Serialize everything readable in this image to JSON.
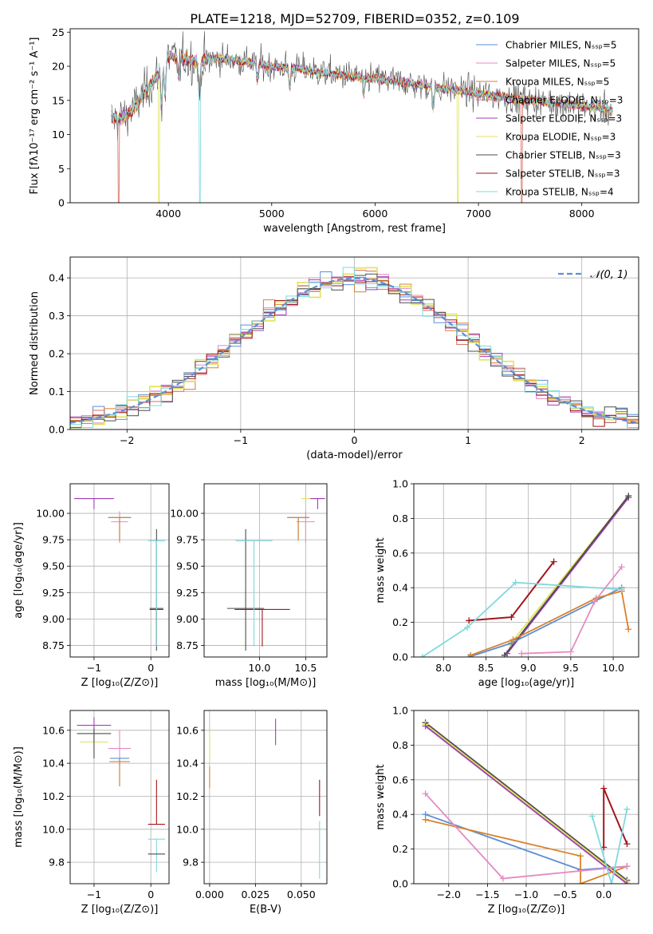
{
  "title": "PLATE=1218, MJD=52709, FIBERID=0352, z=0.109",
  "colors": {
    "s0": "#5b8fd6",
    "s1": "#e48bc3",
    "s2": "#d9822b",
    "s3": "#d86b5c",
    "s4": "#9f3fb5",
    "s5": "#e1e35a",
    "s6": "#4d4d4d",
    "s7": "#a3161b",
    "s8": "#7fd9de",
    "grid": "#b0b0b0",
    "gauss": "#5b8fd6"
  },
  "chart_data": [
    {
      "id": "spectrum",
      "type": "line",
      "xlabel": "wavelength [Angstrom, rest frame]",
      "ylabel": "Flux [fλ10⁻¹⁷ erg cm⁻² s⁻¹ A⁻¹]",
      "xlim": [
        3050,
        8550
      ],
      "ylim": [
        0,
        25.5
      ],
      "xticks": [
        4000,
        5000,
        6000,
        7000,
        8000
      ],
      "yticks": [
        0,
        5,
        10,
        15,
        20,
        25
      ],
      "legend_position": "upper right",
      "legend": [
        "Chabrier MILES, Nₛₛₚ=5",
        "Salpeter MILES, Nₛₛₚ=5",
        "Kroupa MILES, Nₛₛₚ=5",
        "Chabrier ELODIE, Nₛₛₚ=3",
        "Salpeter ELODIE, Nₛₛₚ=3",
        "Kroupa ELODIE, Nₛₛₚ=3",
        "Chabrier STELIB, Nₛₛₚ=3",
        "Salpeter STELIB, Nₛₛₚ=3",
        "Kroupa STELIB, Nₛₛₚ=4"
      ],
      "model_curve": {
        "x": [
          3450,
          3500,
          3600,
          3700,
          3800,
          3900,
          3950,
          4000,
          4100,
          4200,
          4300,
          4400,
          4500,
          4700,
          5000,
          5200,
          5500,
          5800,
          6000,
          6200,
          6500,
          6800,
          7000,
          7200,
          7500,
          7800,
          8000,
          8200,
          8300
        ],
        "y": [
          12.3,
          12.2,
          12.8,
          14.5,
          16.8,
          18.8,
          20.5,
          21.5,
          21.2,
          21.0,
          20.5,
          21.0,
          21.2,
          20.8,
          20.0,
          19.8,
          19.0,
          18.5,
          18.2,
          17.8,
          17.2,
          16.5,
          16.0,
          15.6,
          15.0,
          14.6,
          14.2,
          13.8,
          13.5
        ]
      },
      "dropouts": [
        {
          "x": 3520,
          "color": "s3"
        },
        {
          "x": 3910,
          "color": "s5"
        },
        {
          "x": 4305,
          "color": "s8"
        },
        {
          "x": 6800,
          "color": "s5"
        },
        {
          "x": 7420,
          "color": "s3"
        }
      ]
    },
    {
      "id": "residuals",
      "type": "histogram",
      "xlabel": "(data-model)/error",
      "ylabel": "Normed distribution",
      "xlim": [
        -2.5,
        2.5
      ],
      "ylim": [
        0,
        0.455
      ],
      "xticks": [
        -2,
        -1,
        0,
        1,
        2
      ],
      "yticks": [
        0.0,
        0.1,
        0.2,
        0.3,
        0.4
      ],
      "legend": [
        "𝒩(0, 1)"
      ],
      "legend_position": "upper right",
      "bin_width": 0.1
    },
    {
      "id": "age-vs-Z",
      "type": "errorbar",
      "xlabel": "Z [log₁₀(Z/Z⊙)]",
      "ylabel": "age  [log₁₀(age/yr)]",
      "xlim": [
        -1.42,
        0.32
      ],
      "ylim": [
        8.64,
        10.28
      ],
      "xticks": [
        -1,
        0
      ],
      "yticks": [
        8.75,
        9.0,
        9.25,
        9.5,
        9.75,
        10.0
      ],
      "points": [
        {
          "s": "s0",
          "x": -0.55,
          "y": 9.96,
          "xe": 0.2,
          "yl": 0.23,
          "yh": 0.0
        },
        {
          "s": "s1",
          "x": -0.55,
          "y": 9.92,
          "xe": 0.15,
          "yl": 0.2,
          "yh": 0.1
        },
        {
          "s": "s2",
          "x": -0.55,
          "y": 9.96,
          "xe": 0.2,
          "yl": 0.22,
          "yh": 0.0
        },
        {
          "s": "s5",
          "x": -1.0,
          "y": 10.14,
          "xe": 0.3,
          "yl": 0.0,
          "yh": 0.0
        },
        {
          "s": "s4",
          "x": -1.0,
          "y": 10.14,
          "xe": 0.35,
          "yl": 0.1,
          "yh": 0.0
        },
        {
          "s": "s6",
          "x": 0.1,
          "y": 9.1,
          "xe": 0.12,
          "yl": 0.4,
          "yh": 0.75
        },
        {
          "s": "s7",
          "x": 0.1,
          "y": 9.09,
          "xe": 0.12,
          "yl": 0.35,
          "yh": 0.0
        },
        {
          "s": "s8",
          "x": 0.1,
          "y": 9.74,
          "xe": 0.15,
          "yl": 1.0,
          "yh": 0.0
        }
      ]
    },
    {
      "id": "age-vs-mass",
      "type": "errorbar",
      "xlabel": "mass [log₁₀(M/M⊙)]",
      "ylabel": "",
      "xlim": [
        9.4,
        10.73
      ],
      "ylim": [
        8.64,
        10.28
      ],
      "xticks": [
        10.0,
        10.5
      ],
      "yticks": [
        8.75,
        9.0,
        9.25,
        9.5,
        9.75,
        10.0
      ],
      "points": [
        {
          "s": "s0",
          "x": 10.42,
          "y": 9.96,
          "xe": 0.12,
          "yl": 0.2,
          "yh": 0.0
        },
        {
          "s": "s1",
          "x": 10.5,
          "y": 9.92,
          "xe": 0.1,
          "yl": 0.2,
          "yh": 0.1
        },
        {
          "s": "s2",
          "x": 10.42,
          "y": 9.96,
          "xe": 0.12,
          "yl": 0.22,
          "yh": 0.0
        },
        {
          "s": "s5",
          "x": 10.57,
          "y": 10.14,
          "xe": 0.12,
          "yl": 0.0,
          "yh": 0.0
        },
        {
          "s": "s4",
          "x": 10.63,
          "y": 10.14,
          "xe": 0.08,
          "yl": 0.1,
          "yh": 0.0
        },
        {
          "s": "s6",
          "x": 9.85,
          "y": 9.1,
          "xe": 0.2,
          "yl": 0.4,
          "yh": 0.75
        },
        {
          "s": "s7",
          "x": 10.03,
          "y": 9.09,
          "xe": 0.3,
          "yl": 0.35,
          "yh": 0.0
        },
        {
          "s": "s8",
          "x": 9.94,
          "y": 9.74,
          "xe": 0.2,
          "yl": 1.0,
          "yh": 0.0
        }
      ]
    },
    {
      "id": "weight-vs-age",
      "type": "line",
      "xlabel": "age  [log₁₀(age/yr)]",
      "ylabel": "mass weight",
      "xlim": [
        7.65,
        10.3
      ],
      "ylim": [
        0,
        1.0
      ],
      "xticks": [
        8.0,
        8.5,
        9.0,
        9.5,
        10.0
      ],
      "yticks": [
        0.0,
        0.2,
        0.4,
        0.6,
        0.8,
        1.0
      ],
      "series": [
        {
          "s": "s5",
          "x": [
            8.78,
            10.18
          ],
          "y": [
            0.07,
            0.93
          ]
        },
        {
          "s": "s4",
          "x": [
            8.75,
            10.18
          ],
          "y": [
            0.02,
            0.92
          ]
        },
        {
          "s": "s6",
          "x": [
            8.72,
            10.18
          ],
          "y": [
            0.01,
            0.93
          ]
        },
        {
          "s": "s0",
          "x": [
            8.3,
            8.8,
            10.1
          ],
          "y": [
            0.0,
            0.08,
            0.4
          ]
        },
        {
          "s": "s2",
          "x": [
            8.32,
            8.82,
            9.8,
            10.1,
            10.18
          ],
          "y": [
            0.01,
            0.1,
            0.34,
            0.38,
            0.16
          ]
        },
        {
          "s": "s7",
          "x": [
            8.3,
            8.8,
            9.3
          ],
          "y": [
            0.21,
            0.23,
            0.55
          ]
        },
        {
          "s": "s8",
          "x": [
            7.75,
            8.28,
            8.85,
            10.1
          ],
          "y": [
            0.0,
            0.17,
            0.43,
            0.39
          ]
        },
        {
          "s": "s1",
          "x": [
            8.92,
            9.5,
            9.78,
            10.1
          ],
          "y": [
            0.02,
            0.03,
            0.32,
            0.52
          ]
        }
      ]
    },
    {
      "id": "mass-vs-Z",
      "type": "errorbar",
      "xlabel": "Z [log₁₀(Z/Z⊙)]",
      "ylabel": "mass [log₁₀(M/M⊙)]",
      "xlim": [
        -1.42,
        0.32
      ],
      "ylim": [
        9.67,
        10.72
      ],
      "xticks": [
        -1,
        0
      ],
      "yticks": [
        9.8,
        10.0,
        10.2,
        10.4,
        10.6
      ],
      "points": [
        {
          "s": "s4",
          "x": -1.0,
          "y": 10.63,
          "xe": 0.3,
          "yl": 0.1,
          "yh": 0.05
        },
        {
          "s": "s5",
          "x": -1.0,
          "y": 10.53,
          "xe": 0.25,
          "yl": 0.1,
          "yh": 0.07
        },
        {
          "s": "s6",
          "x": -1.0,
          "y": 10.58,
          "xe": 0.3,
          "yl": 0.15,
          "yh": 0.03
        },
        {
          "s": "s1",
          "x": -0.55,
          "y": 10.49,
          "xe": 0.2,
          "yl": 0.1,
          "yh": 0.11
        },
        {
          "s": "s0",
          "x": -0.55,
          "y": 10.43,
          "xe": 0.17,
          "yl": 0.17,
          "yh": 0.0
        },
        {
          "s": "s2",
          "x": -0.55,
          "y": 10.41,
          "xe": 0.18,
          "yl": 0.15,
          "yh": 0.0
        },
        {
          "s": "s7",
          "x": 0.1,
          "y": 10.03,
          "xe": 0.15,
          "yl": 0.0,
          "yh": 0.27
        },
        {
          "s": "s8",
          "x": 0.1,
          "y": 9.94,
          "xe": 0.15,
          "yl": 0.2,
          "yh": 0.0
        },
        {
          "s": "s6",
          "x": 0.1,
          "y": 9.85,
          "xe": 0.15,
          "yl": 0.0,
          "yh": 0.0
        }
      ]
    },
    {
      "id": "mass-vs-EBV",
      "type": "errorbar",
      "xlabel": "E(B-V)",
      "ylabel": "",
      "xlim": [
        -0.003,
        0.064
      ],
      "ylim": [
        9.67,
        10.72
      ],
      "xticks": [
        0.0,
        0.025,
        0.05
      ],
      "yticks": [
        9.8,
        10.0,
        10.2,
        10.4,
        10.6
      ],
      "points": [
        {
          "s": "s5",
          "x": 0.0,
          "y": 10.5,
          "xe": 0.0,
          "yl": 0.1,
          "yh": 0.1
        },
        {
          "s": "s2",
          "x": 0.0,
          "y": 10.38,
          "xe": 0.0,
          "yl": 0.13,
          "yh": 0.0
        },
        {
          "s": "s4",
          "x": 0.036,
          "y": 10.6,
          "xe": 0.0,
          "yl": 0.09,
          "yh": 0.07
        },
        {
          "s": "s7",
          "x": 0.06,
          "y": 10.08,
          "xe": 0.0,
          "yl": 0.0,
          "yh": 0.22
        },
        {
          "s": "s8",
          "x": 0.06,
          "y": 9.9,
          "xe": 0.0,
          "yl": 0.2,
          "yh": 0.15
        }
      ]
    },
    {
      "id": "weight-vs-Z",
      "type": "line",
      "xlabel": "Z [log₁₀(Z/Z⊙)]",
      "ylabel": "mass weight",
      "xlim": [
        -2.45,
        0.45
      ],
      "ylim": [
        0,
        1.0
      ],
      "xticks": [
        -2.0,
        -1.5,
        -1.0,
        -0.5,
        0.0
      ],
      "yticks": [
        0.0,
        0.2,
        0.4,
        0.6,
        0.8,
        1.0
      ],
      "series": [
        {
          "s": "s6",
          "x": [
            -2.3,
            0.3
          ],
          "y": [
            0.93,
            0.02
          ]
        },
        {
          "s": "s5",
          "x": [
            -2.3,
            0.3
          ],
          "y": [
            0.92,
            0.01
          ]
        },
        {
          "s": "s4",
          "x": [
            -2.3,
            0.3
          ],
          "y": [
            0.91,
            0.0
          ]
        },
        {
          "s": "s0",
          "x": [
            -2.3,
            -0.3,
            0.3
          ],
          "y": [
            0.4,
            0.08,
            0.1
          ]
        },
        {
          "s": "s2",
          "x": [
            -2.3,
            -0.3,
            -0.3,
            0.3
          ],
          "y": [
            0.37,
            0.16,
            0.0,
            0.1
          ]
        },
        {
          "s": "s1",
          "x": [
            -2.3,
            -1.3,
            0.3
          ],
          "y": [
            0.52,
            0.03,
            0.1
          ]
        },
        {
          "s": "s7",
          "x": [
            0.0,
            0.0,
            0.3
          ],
          "y": [
            0.21,
            0.55,
            0.23
          ]
        },
        {
          "s": "s8",
          "x": [
            -0.15,
            0.1,
            0.3
          ],
          "y": [
            0.39,
            0.0,
            0.43
          ]
        }
      ]
    }
  ]
}
